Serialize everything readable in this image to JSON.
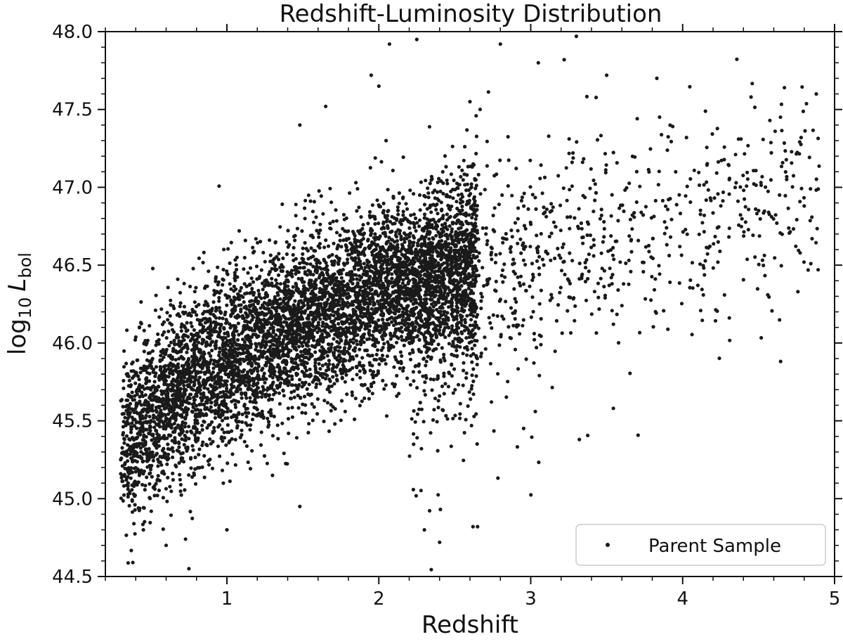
{
  "chart_data": {
    "type": "scatter",
    "title": "Redshift-Luminosity Distribution",
    "xlabel": "Redshift",
    "ylabel_prefix": "log",
    "ylabel_sub": "10",
    "ylabel_var": "L",
    "ylabel_var_sub": "bol",
    "xlim": [
      0.2,
      5.0
    ],
    "ylim": [
      44.5,
      48.0
    ],
    "x_ticks": [
      1,
      2,
      3,
      4,
      5
    ],
    "x_tick_labels": [
      "1",
      "2",
      "3",
      "4",
      "5"
    ],
    "y_ticks": [
      44.5,
      45.0,
      45.5,
      46.0,
      46.5,
      47.0,
      47.5,
      48.0
    ],
    "y_tick_labels": [
      "44.5",
      "45.0",
      "45.5",
      "46.0",
      "46.5",
      "47.0",
      "47.5",
      "48.0"
    ],
    "grid": false,
    "legend_position": "bottom-right",
    "point_color": "#1a1a1a",
    "series": [
      {
        "name": "Parent Sample",
        "distribution": {
          "count": 7000,
          "core": {
            "x_range": [
              0.3,
              2.6
            ],
            "y_at_x_low": 45.3,
            "y_at_x_high": 46.5,
            "spread": 0.28
          },
          "tail": {
            "x_range": [
              2.6,
              4.9
            ],
            "y_center": 46.9,
            "spread": 0.35
          }
        },
        "points": [
          [
            0.35,
            45.1
          ],
          [
            0.45,
            44.8
          ],
          [
            0.6,
            44.7
          ],
          [
            0.75,
            44.55
          ],
          [
            1.0,
            44.8
          ],
          [
            1.3,
            45.15
          ],
          [
            1.48,
            44.95
          ],
          [
            2.3,
            44.8
          ],
          [
            2.4,
            44.72
          ],
          [
            2.65,
            44.82
          ],
          [
            2.07,
            47.92
          ],
          [
            2.25,
            47.95
          ],
          [
            2.8,
            47.92
          ],
          [
            3.05,
            47.8
          ],
          [
            3.22,
            47.82
          ],
          [
            3.3,
            47.97
          ],
          [
            3.5,
            47.72
          ],
          [
            3.83,
            47.7
          ],
          [
            4.45,
            47.58
          ],
          [
            4.67,
            47.64
          ],
          [
            4.88,
            47.6
          ],
          [
            1.95,
            47.72
          ],
          [
            2.0,
            47.65
          ],
          [
            3.03,
            45.56
          ],
          [
            3.32,
            45.38
          ],
          [
            4.1,
            46.37
          ],
          [
            4.62,
            46.77
          ],
          [
            4.5,
            46.85
          ],
          [
            4.8,
            46.88
          ],
          [
            4.78,
            47.32
          ],
          [
            1.65,
            47.52
          ],
          [
            1.48,
            47.4
          ],
          [
            2.6,
            47.55
          ],
          [
            3.6,
            46.24
          ],
          [
            2.62,
            44.82
          ]
        ]
      }
    ]
  }
}
